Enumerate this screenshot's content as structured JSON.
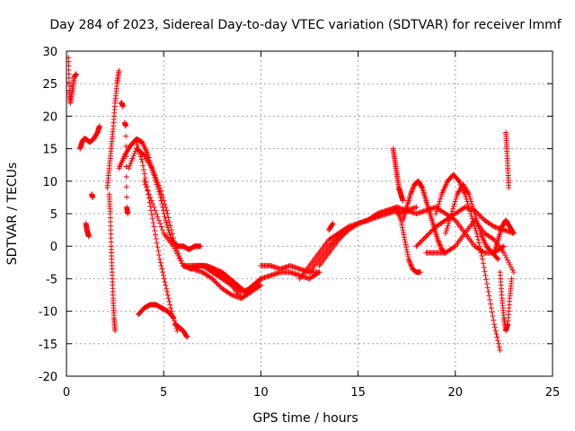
{
  "chart_data": {
    "type": "scatter",
    "title": "Day 284 of 2023, Sidereal Day-to-day VTEC variation (SDTVAR) for receiver lmmf",
    "xlabel": "GPS time / hours",
    "ylabel": "SDTVAR / TECUs",
    "xlim": [
      0,
      25
    ],
    "ylim": [
      -20,
      30
    ],
    "xticks": [
      "0",
      "5",
      "10",
      "15",
      "20",
      "25"
    ],
    "yticks": [
      "-20",
      "-15",
      "-10",
      "-5",
      "0",
      "5",
      "10",
      "15",
      "20",
      "25",
      "30"
    ],
    "grid": true,
    "marker": "+",
    "color": "#ff0000",
    "series": [
      {
        "name": "trace-a",
        "x": [
          0.1,
          0.15,
          0.2,
          0.3,
          0.4,
          0.5
        ],
        "y": [
          29,
          24,
          22,
          24,
          26,
          26.5
        ]
      },
      {
        "name": "trace-b",
        "x": [
          0.7,
          0.8,
          0.9,
          1.0,
          1.2,
          1.4,
          1.6,
          1.7
        ],
        "y": [
          15,
          16,
          16.5,
          16.5,
          16,
          16.5,
          17.5,
          18.5
        ]
      },
      {
        "name": "trace-c",
        "x": [
          1.0,
          1.05,
          1.1,
          1.15
        ],
        "y": [
          3.5,
          2.5,
          2,
          1.5
        ]
      },
      {
        "name": "trace-d",
        "x": [
          1.3,
          1.35
        ],
        "y": [
          8,
          7.5
        ]
      },
      {
        "name": "trace-e",
        "x": [
          2.1,
          2.2,
          2.3,
          2.4,
          2.5,
          2.6,
          2.7
        ],
        "y": [
          9,
          12,
          15,
          18,
          22,
          25,
          27
        ]
      },
      {
        "name": "trace-f",
        "x": [
          2.2,
          2.25,
          2.3,
          2.35,
          2.4,
          2.45,
          2.5
        ],
        "y": [
          8,
          5,
          0,
          -4,
          -8,
          -11,
          -13
        ]
      },
      {
        "name": "trace-g",
        "x": [
          2.8,
          2.85,
          2.9
        ],
        "y": [
          22,
          22,
          21.5
        ]
      },
      {
        "name": "trace-h",
        "x": [
          3.0,
          3.05,
          3.1,
          3.15
        ],
        "y": [
          19,
          18.5,
          6,
          5
        ]
      },
      {
        "name": "trace-i",
        "x": [
          2.7,
          3.0,
          3.3,
          3.6,
          3.9,
          4.2,
          4.5,
          4.8,
          5.1,
          5.4,
          5.7,
          6.0,
          6.3,
          6.6,
          6.9
        ],
        "y": [
          12,
          14,
          15.5,
          16.5,
          16,
          14,
          11,
          8,
          4,
          1,
          0,
          0,
          -0.5,
          0,
          0
        ]
      },
      {
        "name": "trace-j",
        "x": [
          3.2,
          3.6,
          4.0,
          4.4,
          4.8,
          5.2,
          5.6,
          6.0,
          6.4,
          6.8,
          7.2,
          7.6,
          8.0,
          8.4,
          8.8,
          9.2,
          9.6,
          10.0
        ],
        "y": [
          12,
          15,
          14,
          12,
          9,
          5,
          0,
          -3,
          -3.5,
          -3,
          -3,
          -3.5,
          -4,
          -5,
          -6,
          -7,
          -6,
          -5
        ]
      },
      {
        "name": "trace-k",
        "x": [
          3.6,
          3.9,
          4.2,
          4.5,
          4.8,
          5.1,
          5.4,
          5.7
        ],
        "y": [
          16,
          13,
          8,
          3,
          -2,
          -6,
          -10,
          -13
        ]
      },
      {
        "name": "trace-l",
        "x": [
          4.0,
          4.5,
          5.0,
          5.5,
          6.0,
          6.5,
          7.0,
          7.5,
          8.0,
          8.5,
          9.0,
          9.5,
          10.0
        ],
        "y": [
          10,
          6,
          2,
          0,
          -3,
          -3,
          -3,
          -4,
          -5,
          -6,
          -8,
          -7,
          -5
        ]
      },
      {
        "name": "trace-m",
        "x": [
          3.7,
          4.0,
          4.3,
          4.6,
          4.9,
          5.2,
          5.5
        ],
        "y": [
          -10.5,
          -9.5,
          -9,
          -9,
          -9.5,
          -10,
          -11
        ]
      },
      {
        "name": "trace-n",
        "x": [
          5.6,
          5.8,
          6.0,
          6.2
        ],
        "y": [
          -12,
          -12.5,
          -13,
          -14
        ]
      },
      {
        "name": "trace-o",
        "x": [
          6.5,
          7.0,
          7.5,
          8.0,
          8.5,
          9.0,
          9.5,
          10.0,
          10.5,
          11.0,
          11.5,
          12.0,
          12.5,
          13.0
        ],
        "y": [
          -3,
          -3,
          -3.5,
          -4.5,
          -6,
          -7,
          -6.5,
          -5,
          -4.5,
          -4,
          -4,
          -4.5,
          -5,
          -4
        ]
      },
      {
        "name": "trace-p",
        "x": [
          6.5,
          7.0,
          7.5,
          8.0,
          8.5,
          9.0,
          9.5,
          10.0
        ],
        "y": [
          -3.5,
          -4,
          -5,
          -6.5,
          -7.5,
          -8,
          -7,
          -6
        ]
      },
      {
        "name": "trace-q",
        "x": [
          10.0,
          10.5,
          11.0,
          11.5,
          12.0,
          12.5,
          13.0
        ],
        "y": [
          -3,
          -3,
          -3.5,
          -3,
          -3.5,
          -4,
          -4
        ]
      },
      {
        "name": "trace-r",
        "x": [
          12.0,
          12.5,
          13.0,
          13.5,
          14.0,
          14.5,
          15.0,
          15.5,
          16.0,
          16.5,
          17.0
        ],
        "y": [
          -5,
          -3,
          -1,
          1,
          2,
          3,
          3.5,
          4,
          5,
          5.5,
          6
        ]
      },
      {
        "name": "trace-s",
        "x": [
          12.5,
          13.0,
          13.5,
          14.0,
          14.5,
          15.0,
          15.5,
          16.0,
          16.5,
          17.0
        ],
        "y": [
          -4,
          -2,
          0,
          1.5,
          2.5,
          3.5,
          4,
          4.5,
          5,
          5.5
        ]
      },
      {
        "name": "trace-t",
        "x": [
          13.0,
          13.5,
          14.0,
          14.5,
          15.0,
          15.5,
          16.0,
          16.5,
          17.0,
          17.5,
          18.0
        ],
        "y": [
          -3,
          -1,
          1,
          2.5,
          3.5,
          4,
          5,
          5.5,
          6,
          5.5,
          6
        ]
      },
      {
        "name": "trace-u",
        "x": [
          13.5,
          13.7
        ],
        "y": [
          2.5,
          3.5
        ]
      },
      {
        "name": "trace-v",
        "x": [
          16.8,
          16.9,
          17.0,
          17.1,
          17.2,
          17.3
        ],
        "y": [
          15,
          13,
          11,
          9,
          8,
          7
        ]
      },
      {
        "name": "trace-w",
        "x": [
          17.0,
          17.2,
          17.4,
          17.6,
          17.8,
          18.0,
          18.2
        ],
        "y": [
          6,
          4,
          1,
          -2,
          -3.5,
          -4,
          -4
        ]
      },
      {
        "name": "trace-x",
        "x": [
          17.3,
          17.5,
          17.7,
          17.9,
          18.1,
          18.3,
          18.5,
          18.7,
          18.9,
          19.1,
          19.3,
          19.5
        ],
        "y": [
          4,
          6,
          8,
          9.5,
          10,
          9,
          7,
          5,
          3,
          1,
          -0.5,
          -1
        ]
      },
      {
        "name": "trace-y",
        "x": [
          17.0,
          17.5,
          18.0,
          18.5,
          19.0,
          19.5,
          20.0,
          20.5,
          21.0,
          21.5,
          22.0,
          22.5
        ],
        "y": [
          5,
          5.5,
          5,
          5.5,
          6,
          5,
          4,
          2,
          0,
          -1,
          -1,
          0
        ]
      },
      {
        "name": "trace-z",
        "x": [
          18.0,
          18.5,
          19.0,
          19.5,
          20.0,
          20.5,
          21.0,
          21.5,
          22.0,
          22.5,
          23.0
        ],
        "y": [
          0,
          1.5,
          3,
          4,
          5,
          6,
          5.5,
          4,
          3,
          2.5,
          2
        ]
      },
      {
        "name": "trace-aa",
        "x": [
          18.5,
          19.0,
          19.5,
          20.0,
          20.5,
          21.0,
          21.5,
          22.0,
          22.5,
          23.0
        ],
        "y": [
          -1,
          -1,
          -1,
          0,
          2,
          4,
          2,
          1,
          -1,
          -4
        ]
      },
      {
        "name": "trace-ab",
        "x": [
          19.0,
          19.3,
          19.6,
          19.9,
          20.2,
          20.5,
          20.8,
          21.1,
          21.4,
          21.7,
          22.0,
          22.3
        ],
        "y": [
          5,
          8,
          10,
          11,
          10,
          8,
          5,
          2,
          -2,
          -7,
          -12,
          -16
        ]
      },
      {
        "name": "trace-ac",
        "x": [
          19.5,
          19.8,
          20.1,
          20.4,
          20.7,
          21.0,
          21.3,
          21.6,
          21.9,
          22.2
        ],
        "y": [
          2,
          5,
          8,
          9.5,
          8,
          5,
          2,
          0,
          -1,
          -2
        ]
      },
      {
        "name": "trace-ad",
        "x": [
          22.0,
          22.2,
          22.4,
          22.6,
          22.8,
          23.0
        ],
        "y": [
          -1,
          1,
          3,
          4,
          3,
          2
        ]
      },
      {
        "name": "trace-ae",
        "x": [
          22.3,
          22.4,
          22.5,
          22.6,
          22.7,
          22.8,
          22.9
        ],
        "y": [
          -4,
          -8,
          -11,
          -13,
          -12,
          -8,
          -5
        ]
      },
      {
        "name": "trace-af",
        "x": [
          22.6,
          22.65,
          22.7,
          22.75
        ],
        "y": [
          17.5,
          15,
          12,
          9
        ]
      }
    ]
  }
}
